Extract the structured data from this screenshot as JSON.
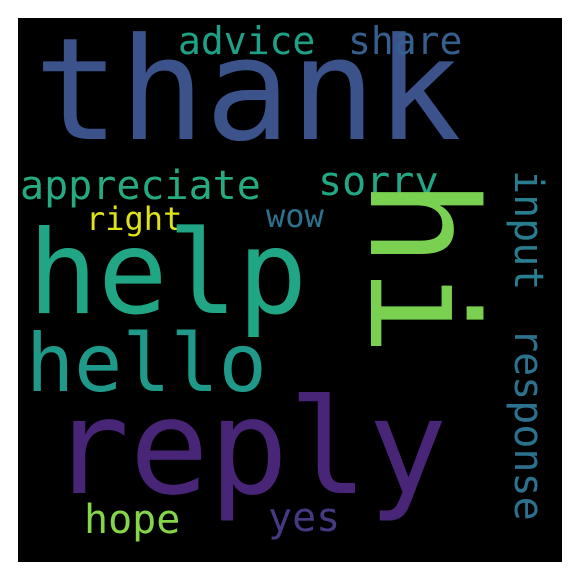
{
  "wordcloud": {
    "background": "#000000",
    "words": [
      {
        "key": "thank",
        "text": "thank",
        "color": "#3b528b"
      },
      {
        "key": "help",
        "text": "help",
        "color": "#21a685"
      },
      {
        "key": "reply",
        "text": "reply",
        "color": "#482576"
      },
      {
        "key": "hi",
        "text": "hi",
        "color": "#7ad151"
      },
      {
        "key": "hello",
        "text": "hello",
        "color": "#1f9a8a"
      },
      {
        "key": "appreciate",
        "text": "appreciate",
        "color": "#25ab82"
      },
      {
        "key": "response",
        "text": "response",
        "color": "#2c728e"
      },
      {
        "key": "sorry",
        "text": "sorry",
        "color": "#22a884"
      },
      {
        "key": "advice",
        "text": "advice",
        "color": "#1fa187"
      },
      {
        "key": "share",
        "text": "share",
        "color": "#355f8d"
      },
      {
        "key": "input",
        "text": "input",
        "color": "#287d8e"
      },
      {
        "key": "right",
        "text": "right",
        "color": "#dde318"
      },
      {
        "key": "wow",
        "text": "wow",
        "color": "#2d718e"
      },
      {
        "key": "hope",
        "text": "hope",
        "color": "#86d549"
      },
      {
        "key": "yes",
        "text": "yes",
        "color": "#443983"
      }
    ]
  }
}
